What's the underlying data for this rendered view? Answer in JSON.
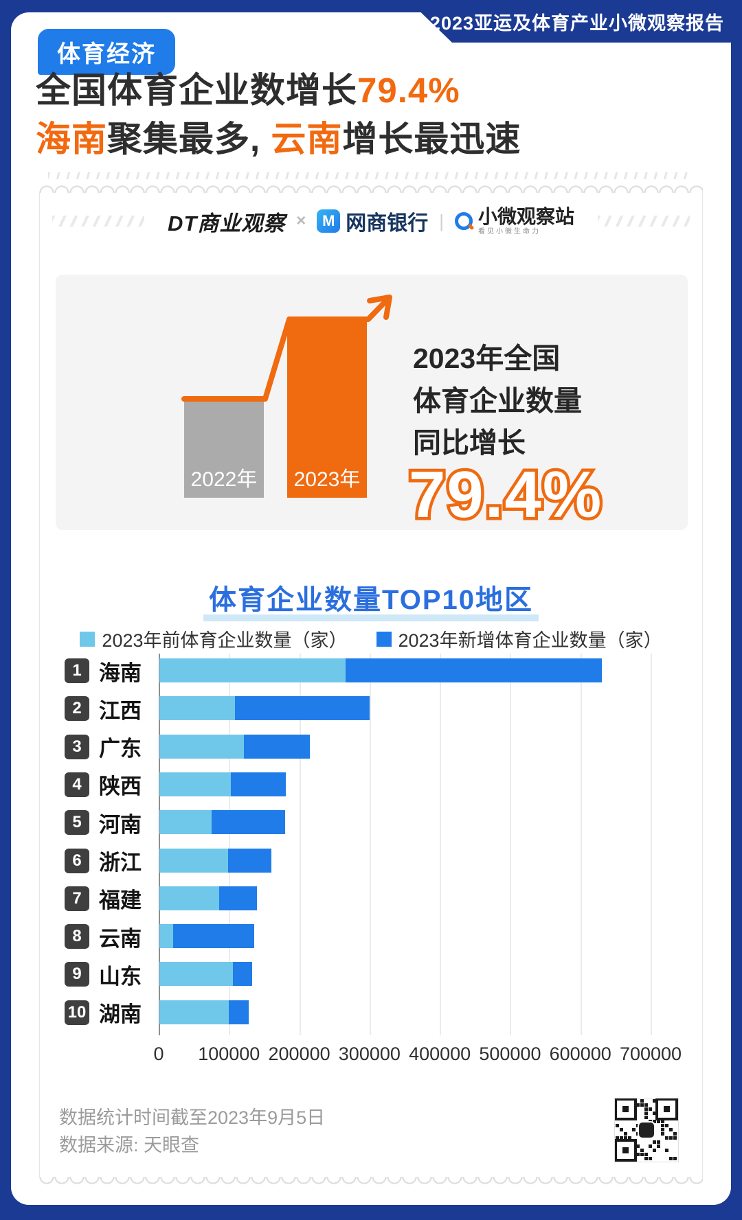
{
  "banner": {
    "report_title": "2023亚运及体育产业小微观察报告"
  },
  "header": {
    "badge": "体育经济",
    "title": {
      "line1_text": "全国体育企业数增长",
      "line1_highlight": "79.4%",
      "line2_hl1": "海南",
      "line2_mid": "聚集最多, ",
      "line2_hl2": "云南",
      "line2_end": "增长最迅速"
    }
  },
  "logos": {
    "dt": "DT商业观察",
    "cross": "×",
    "bank_icon_letter": "M",
    "bank": "网商银行",
    "divider": "|",
    "observer": "小微观察站",
    "observer_sub": "看见小微生命力"
  },
  "growth_panel": {
    "bar_2022_label": "2022年",
    "bar_2023_label": "2023年",
    "lines": {
      "l1": "2023年全国",
      "l2": "体育企业数量",
      "l3": "同比增长"
    },
    "percent": "79.4%"
  },
  "chart_data": {
    "type": "bar",
    "orientation": "horizontal",
    "stacked": true,
    "title": "体育企业数量TOP10地区",
    "categories": [
      "海南",
      "江西",
      "广东",
      "陕西",
      "河南",
      "浙江",
      "福建",
      "云南",
      "山东",
      "湖南"
    ],
    "ranks": [
      "1",
      "2",
      "3",
      "4",
      "5",
      "6",
      "7",
      "8",
      "9",
      "10"
    ],
    "series": [
      {
        "name": "2023年前体育企业数量（家）",
        "color": "#6fc8e9",
        "values": [
          265000,
          108000,
          120000,
          102000,
          74000,
          98000,
          85000,
          20000,
          105000,
          99000
        ]
      },
      {
        "name": "2023年新增体育企业数量（家）",
        "color": "#1f7ce9",
        "values": [
          365000,
          191000,
          94000,
          78000,
          105000,
          61000,
          54000,
          115000,
          27000,
          28000
        ]
      }
    ],
    "xlim": [
      0,
      700000
    ],
    "x_ticks": [
      0,
      100000,
      200000,
      300000,
      400000,
      500000,
      600000,
      700000
    ],
    "grid": true,
    "legend_position": "top"
  },
  "footer": {
    "note1": "数据统计时间截至2023年9月5日",
    "note2": "数据来源: 天眼查"
  },
  "colors": {
    "background_navy": "#1b3a94",
    "accent_orange": "#f2690f",
    "badge_blue": "#1f7ce9",
    "chart_title_blue": "#2b6fdf",
    "pre2023_light_blue": "#6fc8e9",
    "new2023_blue": "#1f7ce9",
    "gray_bar": "#ababab",
    "rank_badge_dark": "#3f3f3f"
  }
}
